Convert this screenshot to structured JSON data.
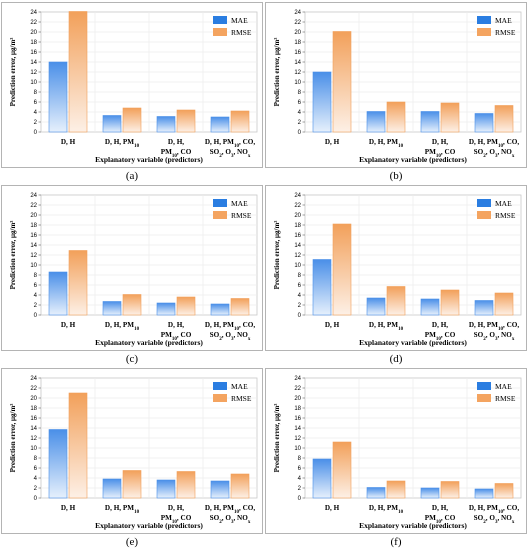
{
  "chart_data": [
    {
      "type": "bar",
      "panel_label": "(a)",
      "categories": [
        "D, H",
        "D, H, PM10",
        "D, H, PM10, CO",
        "D, H, PM10, CO, SO2, O3, NOx"
      ],
      "series": [
        {
          "name": "MAE",
          "values": [
            14.0,
            3.3,
            3.1,
            3.0
          ]
        },
        {
          "name": "RMSE",
          "values": [
            24.1,
            4.8,
            4.4,
            4.2
          ]
        }
      ],
      "xlabel": "Explanatory variable (predictors)",
      "ylabel": "Prediction error, μg/m³",
      "ylim": [
        0,
        24
      ],
      "yticks": [
        "0",
        "2",
        "4",
        "6",
        "8",
        "10",
        "12",
        "14",
        "16",
        "18",
        "20",
        "22",
        "24"
      ],
      "grid": true,
      "legend": "top-right"
    },
    {
      "type": "bar",
      "panel_label": "(b)",
      "categories": [
        "D, H",
        "D, H, PM10",
        "D, H, PM10, CO",
        "D, H, PM10, CO, SO2, O3, NOx"
      ],
      "series": [
        {
          "name": "MAE",
          "values": [
            12.0,
            4.1,
            4.1,
            3.7
          ]
        },
        {
          "name": "RMSE",
          "values": [
            20.1,
            6.0,
            5.8,
            5.3
          ]
        }
      ],
      "xlabel": "Explanatory variable (predictors)",
      "ylabel": "Prediction error, μg/m³",
      "ylim": [
        0,
        24
      ],
      "yticks": [
        "0",
        "2",
        "4",
        "6",
        "8",
        "10",
        "12",
        "14",
        "16",
        "18",
        "20",
        "22",
        "24"
      ],
      "grid": true,
      "legend": "top-right"
    },
    {
      "type": "bar",
      "panel_label": "(c)",
      "categories": [
        "D, H",
        "D, H, PM10",
        "D, H, PM10, CO",
        "D, H, PM10, CO, SO2, O3, NOx"
      ],
      "series": [
        {
          "name": "MAE",
          "values": [
            8.6,
            2.7,
            2.4,
            2.2
          ]
        },
        {
          "name": "RMSE",
          "values": [
            12.9,
            4.1,
            3.6,
            3.3
          ]
        }
      ],
      "xlabel": "Explanatory variable (predictors)",
      "ylabel": "Prediction error, μg/m³",
      "ylim": [
        0,
        24
      ],
      "yticks": [
        "0",
        "2",
        "4",
        "6",
        "8",
        "10",
        "12",
        "14",
        "16",
        "18",
        "20",
        "22",
        "24"
      ],
      "grid": true,
      "legend": "top-right"
    },
    {
      "type": "bar",
      "panel_label": "(d)",
      "categories": [
        "D, H",
        "D, H, PM10",
        "D, H, PM10, CO",
        "D, H, PM10, CO, SO2, O3, NOx"
      ],
      "series": [
        {
          "name": "MAE",
          "values": [
            11.1,
            3.4,
            3.2,
            2.9
          ]
        },
        {
          "name": "RMSE",
          "values": [
            18.2,
            5.7,
            5.0,
            4.4
          ]
        }
      ],
      "xlabel": "Explanatory variable (predictors)",
      "ylabel": "Prediction error, μg/m³",
      "ylim": [
        0,
        24
      ],
      "yticks": [
        "0",
        "2",
        "4",
        "6",
        "8",
        "10",
        "12",
        "14",
        "16",
        "18",
        "20",
        "22",
        "24"
      ],
      "grid": true,
      "legend": "top-right"
    },
    {
      "type": "bar",
      "panel_label": "(e)",
      "categories": [
        "D, H",
        "D, H, PM10",
        "D, H, PM10, CO",
        "D, H, PM10, CO, SO2, O3, NOx"
      ],
      "series": [
        {
          "name": "MAE",
          "values": [
            13.7,
            3.8,
            3.6,
            3.4
          ]
        },
        {
          "name": "RMSE",
          "values": [
            21.0,
            5.5,
            5.3,
            4.8
          ]
        }
      ],
      "xlabel": "Explanatory variable (predictors)",
      "ylabel": "Prediction error, μg/m³",
      "ylim": [
        0,
        24
      ],
      "yticks": [
        "0",
        "2",
        "4",
        "6",
        "8",
        "10",
        "12",
        "14",
        "16",
        "18",
        "20",
        "22",
        "24"
      ],
      "grid": true,
      "legend": "top-right"
    },
    {
      "type": "bar",
      "panel_label": "(f)",
      "categories": [
        "D, H",
        "D, H, PM10",
        "D, H, PM10, CO",
        "D, H, PM10, CO, SO2, O3, NOx"
      ],
      "series": [
        {
          "name": "MAE",
          "values": [
            7.8,
            2.1,
            2.0,
            1.8
          ]
        },
        {
          "name": "RMSE",
          "values": [
            11.2,
            3.4,
            3.3,
            2.9
          ]
        }
      ],
      "xlabel": "Explanatory variable (predictors)",
      "ylabel": "Prediction error, μg/m³",
      "ylim": [
        0,
        24
      ],
      "yticks": [
        "0",
        "2",
        "4",
        "6",
        "8",
        "10",
        "12",
        "14",
        "16",
        "18",
        "20",
        "22",
        "24"
      ],
      "grid": true,
      "legend": "top-right"
    }
  ],
  "colors": {
    "mae_top": "#4a8fe8",
    "mae_bottom": "#e6f0fc",
    "rmse_top": "#f2a05a",
    "rmse_bottom": "#fdf0e6",
    "mae_legend": "#2a7de1",
    "rmse_legend": "#f4a460"
  }
}
